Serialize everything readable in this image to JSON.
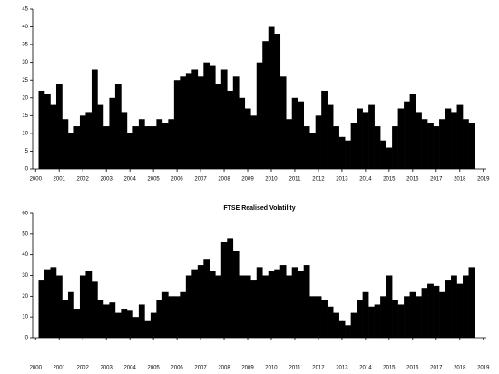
{
  "chart_data": [
    {
      "type": "bar",
      "color": "#000000",
      "ylim": [
        0,
        45
      ],
      "yticks": [
        0,
        5,
        10,
        15,
        20,
        25,
        30,
        35,
        40,
        45
      ],
      "categories": [
        "2000",
        null,
        null,
        null,
        "2001",
        null,
        null,
        null,
        "2002",
        null,
        null,
        null,
        "2003",
        null,
        null,
        null,
        "2004",
        null,
        null,
        null,
        "2005",
        null,
        null,
        null,
        "2006",
        null,
        null,
        null,
        "2007",
        null,
        null,
        null,
        "2008",
        null,
        null,
        null,
        "2009",
        null,
        null,
        null,
        "2010",
        null,
        null,
        null,
        "2011",
        null,
        null,
        null,
        "2012",
        null,
        null,
        null,
        "2013",
        null,
        null,
        null,
        "2014",
        null,
        null,
        null,
        "2015",
        null,
        null,
        null,
        "2016",
        null,
        null,
        null,
        "2017",
        null,
        null,
        null,
        "2018",
        null,
        null,
        null,
        "2019"
      ],
      "values": [
        null,
        22,
        21,
        18,
        24,
        14,
        10,
        12,
        15,
        16,
        28,
        18,
        12,
        20,
        24,
        16,
        10,
        12,
        14,
        12,
        12,
        14,
        13,
        14,
        25,
        26,
        27,
        28,
        26,
        30,
        29,
        24,
        28,
        22,
        26,
        20,
        17,
        15,
        30,
        36,
        40,
        38,
        26,
        14,
        20,
        19,
        12,
        10,
        15,
        22,
        18,
        12,
        9,
        8,
        13,
        17,
        16,
        18,
        12,
        8,
        6,
        12,
        17,
        19,
        21,
        16,
        14,
        13,
        12,
        14,
        17,
        16,
        18,
        14,
        13,
        null,
        null
      ]
    },
    {
      "type": "bar",
      "title": "FTSE Realised Volatility",
      "color": "#000000",
      "ylim": [
        0,
        60
      ],
      "yticks": [
        0,
        10,
        20,
        30,
        40,
        50,
        60
      ],
      "categories": [
        "2000",
        null,
        null,
        null,
        "2001",
        null,
        null,
        null,
        "2002",
        null,
        null,
        null,
        "2003",
        null,
        null,
        null,
        "2004",
        null,
        null,
        null,
        "2005",
        null,
        null,
        null,
        "2006",
        null,
        null,
        null,
        "2007",
        null,
        null,
        null,
        "2008",
        null,
        null,
        null,
        "2009",
        null,
        null,
        null,
        "2010",
        null,
        null,
        null,
        "2011",
        null,
        null,
        null,
        "2012",
        null,
        null,
        null,
        "2013",
        null,
        null,
        null,
        "2014",
        null,
        null,
        null,
        "2015",
        null,
        null,
        null,
        "2016",
        null,
        null,
        null,
        "2017",
        null,
        null,
        null,
        "2018",
        null,
        null,
        null,
        "2019"
      ],
      "values": [
        null,
        28,
        33,
        34,
        30,
        18,
        22,
        14,
        30,
        32,
        27,
        18,
        16,
        17,
        12,
        14,
        13,
        10,
        16,
        8,
        12,
        18,
        22,
        20,
        20,
        22,
        30,
        33,
        35,
        38,
        32,
        30,
        46,
        48,
        42,
        30,
        30,
        28,
        34,
        30,
        32,
        33,
        35,
        30,
        34,
        32,
        35,
        20,
        20,
        18,
        15,
        12,
        8,
        6,
        12,
        18,
        22,
        15,
        16,
        20,
        30,
        18,
        16,
        20,
        22,
        20,
        24,
        26,
        25,
        22,
        28,
        30,
        26,
        30,
        34,
        null,
        null
      ]
    }
  ]
}
